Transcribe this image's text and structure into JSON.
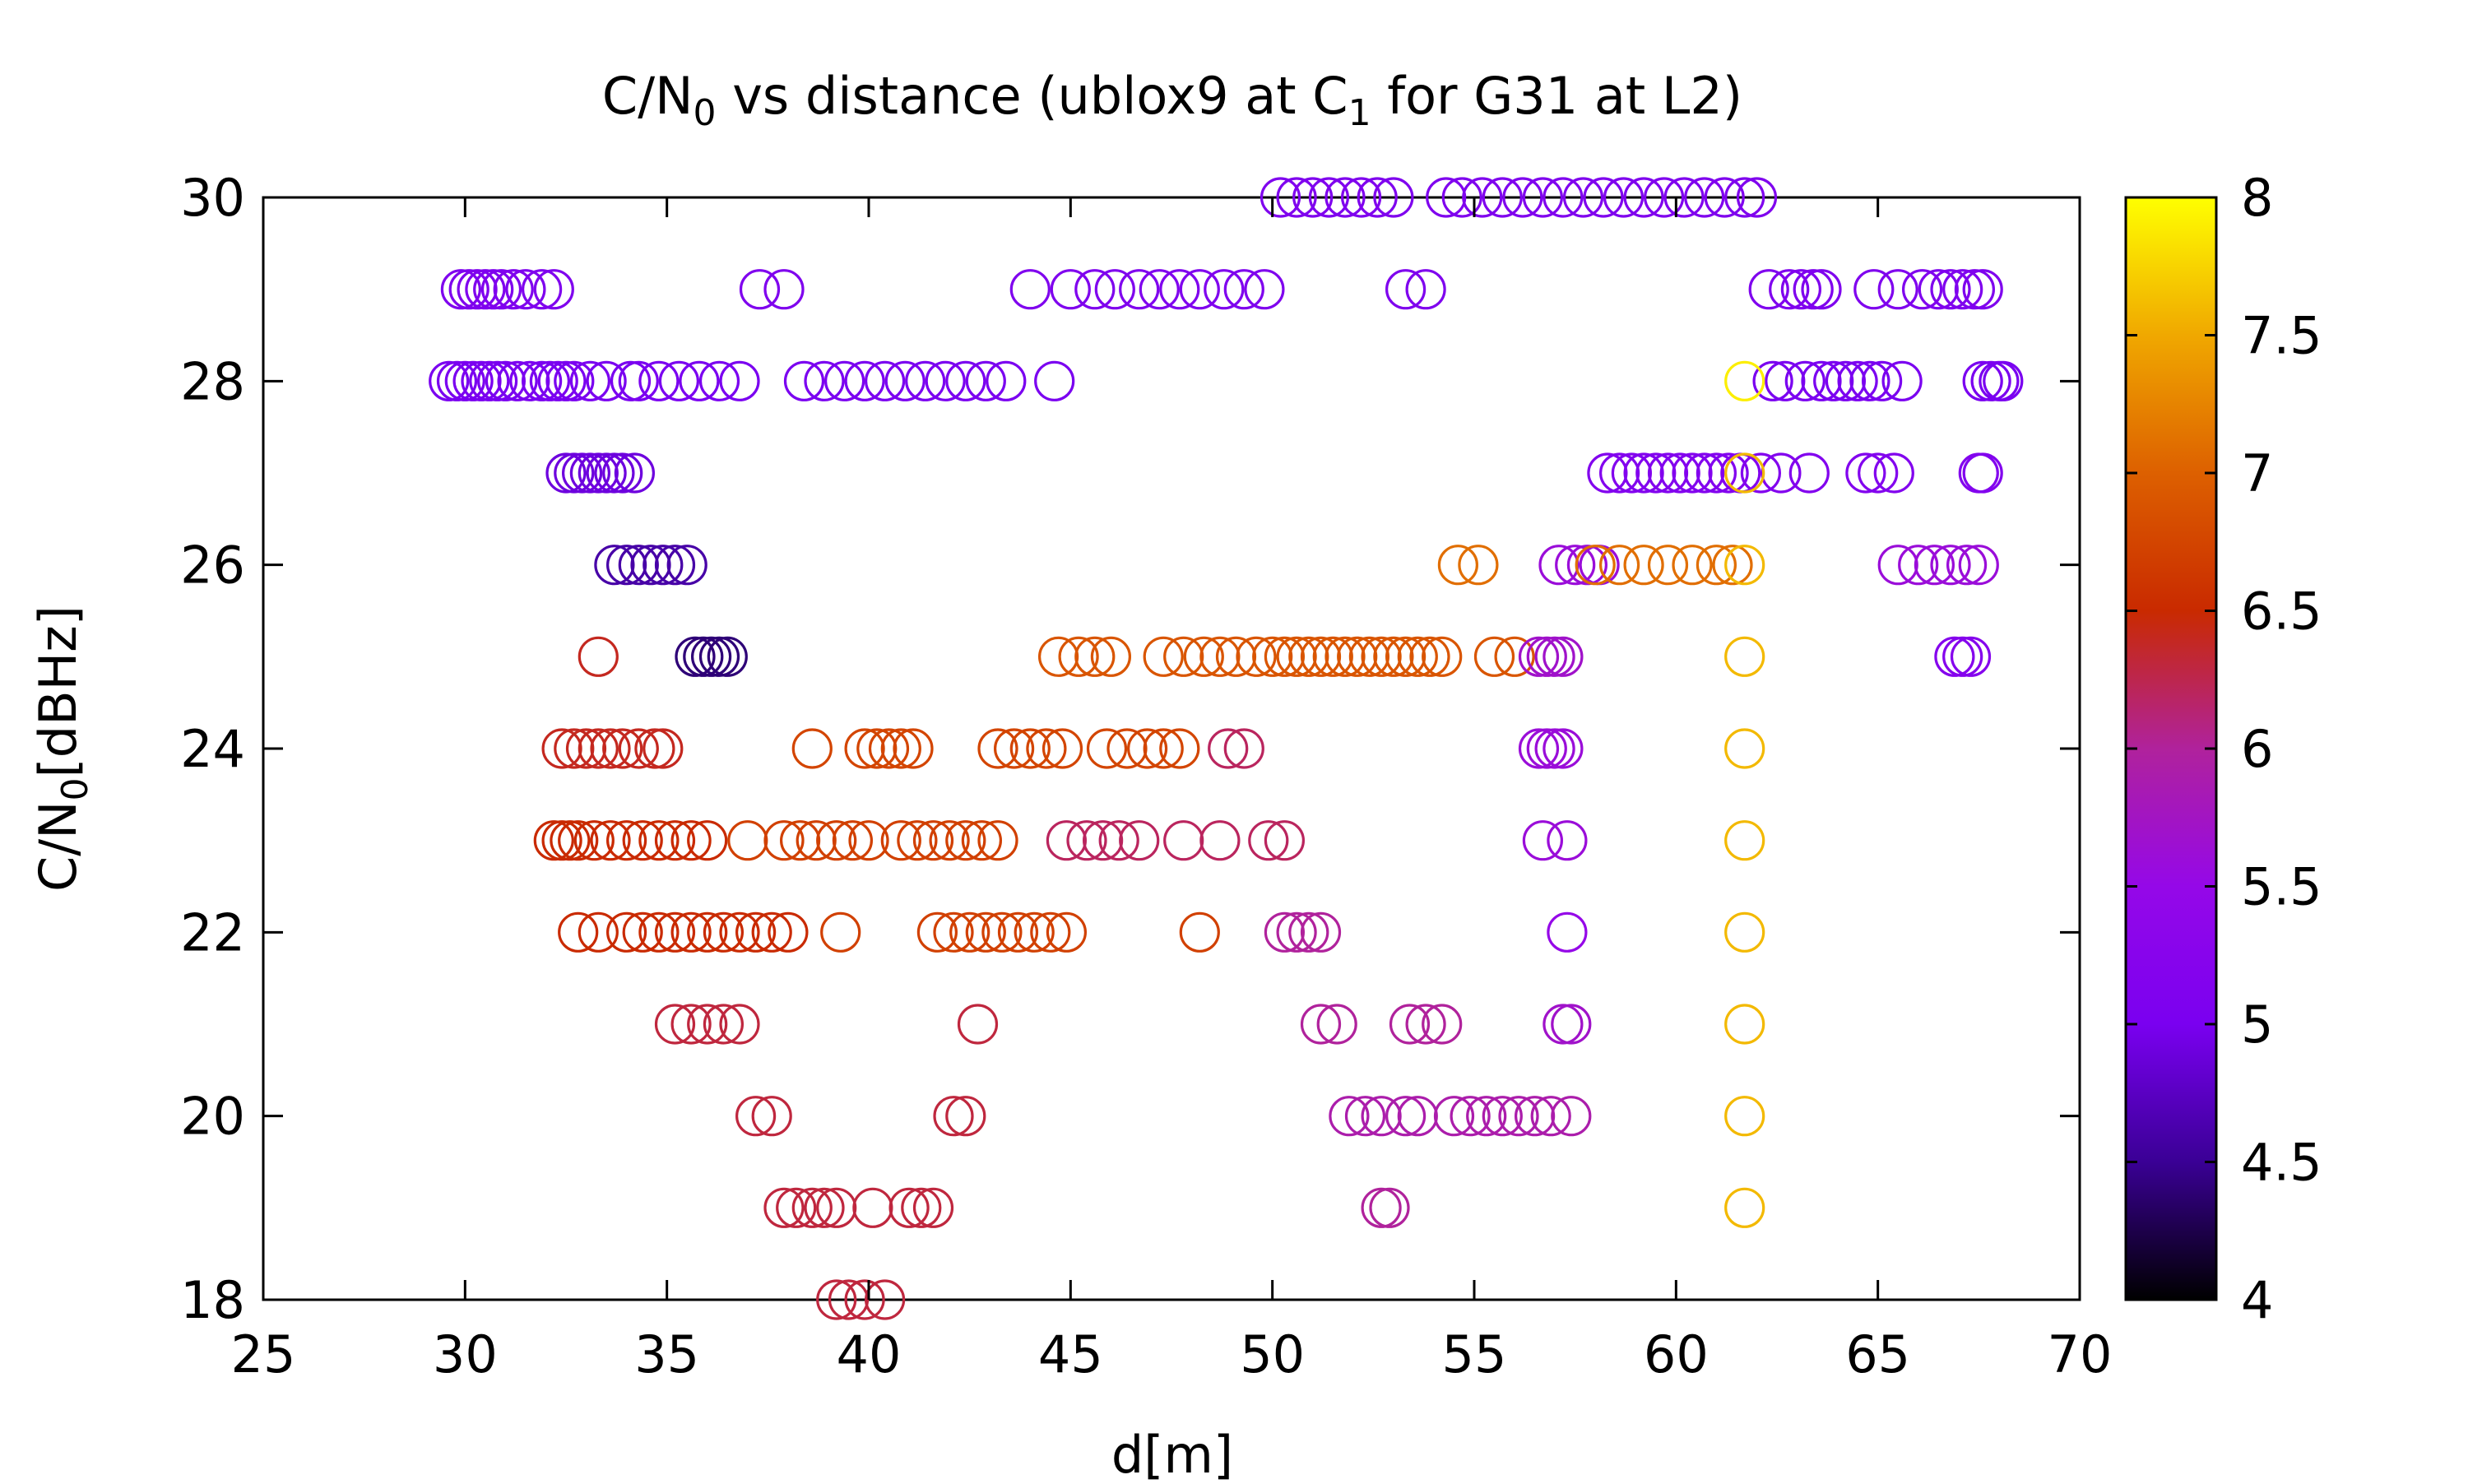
{
  "chart_data": {
    "type": "scatter",
    "title_parts": {
      "a": "C/N",
      "a_sub": "0",
      "b": " vs distance (ublox9 at C",
      "b_sub": "1",
      "c": " for G31 at L2)"
    },
    "xlabel": "d[m]",
    "ylabel_parts": {
      "a": "C/N",
      "a_sub": "0",
      "b": "[dBHz]"
    },
    "xlim": [
      25,
      70
    ],
    "ylim": [
      18,
      30
    ],
    "xticks": [
      25,
      30,
      35,
      40,
      45,
      50,
      55,
      60,
      65,
      70
    ],
    "yticks": [
      18,
      20,
      22,
      24,
      26,
      28,
      30
    ],
    "marker": "open-circle",
    "grid": false,
    "colorbar": {
      "range": [
        4,
        8
      ],
      "ticks": [
        "4",
        "4.5",
        "5",
        "5.5",
        "6",
        "6.5",
        "7",
        "7.5",
        "8"
      ],
      "palette": [
        "#000000",
        "#3a0095",
        "#7a00f0",
        "#9508e8",
        "#b0229c",
        "#c92a00",
        "#dd6000",
        "#f0a800",
        "#ffff00"
      ]
    },
    "points": [
      {
        "y": 30,
        "c": 5.1,
        "x": [
          50.2,
          50.6,
          51.0,
          51.4,
          51.8,
          52.2,
          52.6,
          53.0,
          54.3,
          54.7,
          55.2,
          55.7,
          56.2,
          56.7,
          57.2,
          57.7,
          58.2,
          58.7,
          59.2,
          59.7,
          60.2,
          60.7,
          61.2,
          61.7,
          62.0
        ]
      },
      {
        "y": 29,
        "c": 5.1,
        "x": [
          29.9,
          30.1,
          30.3,
          30.5,
          30.7,
          30.9,
          31.2,
          31.5,
          31.9,
          32.2,
          37.3,
          37.9,
          44.0,
          45.0,
          45.6,
          46.1,
          46.7,
          47.2,
          47.7,
          48.2,
          48.8,
          49.3,
          49.8,
          53.3,
          53.8,
          62.3,
          62.8,
          63.1,
          63.4,
          63.6,
          64.9,
          65.5,
          66.1,
          66.5,
          66.8,
          67.1,
          67.4,
          67.6
        ]
      },
      {
        "y": 28,
        "c": 5.0,
        "x": [
          29.6,
          29.8,
          30.0,
          30.2,
          30.4,
          30.6,
          30.8,
          31.0,
          31.3,
          31.6,
          31.9,
          32.1,
          32.3,
          32.5,
          32.7,
          33.1,
          33.5,
          34.1,
          34.3,
          34.8,
          35.3,
          35.8,
          36.3,
          36.8,
          38.4,
          38.9,
          39.4,
          39.9,
          40.4,
          40.9,
          41.4,
          41.9,
          42.4,
          42.9,
          43.4,
          44.6,
          62.4,
          62.7,
          63.2,
          63.6,
          63.9,
          64.2,
          64.5,
          64.8,
          65.1,
          65.6,
          67.6,
          67.8,
          68.0,
          68.1
        ]
      },
      {
        "y": 28,
        "c": 7.9,
        "x": [
          61.7
        ]
      },
      {
        "y": 27,
        "c": 4.9,
        "x": [
          32.5,
          32.7,
          32.9,
          33.1,
          33.3,
          33.5,
          33.7,
          33.9,
          34.2
        ]
      },
      {
        "y": 27,
        "c": 5.15,
        "x": [
          58.3,
          58.6,
          58.9,
          59.2,
          59.5,
          59.8,
          60.1,
          60.4,
          60.7,
          61.0,
          61.3,
          61.6,
          62.1,
          62.6,
          63.3,
          64.7,
          65.0,
          65.4,
          67.5,
          67.6
        ]
      },
      {
        "y": 27,
        "c": 7.6,
        "x": [
          61.7
        ]
      },
      {
        "y": 26,
        "c": 4.6,
        "x": [
          33.7,
          34.0,
          34.3,
          34.6,
          34.9,
          35.2,
          35.5
        ]
      },
      {
        "y": 26,
        "c": 5.6,
        "x": [
          57.1,
          57.5,
          57.8,
          58.1,
          65.5,
          66.0,
          66.4,
          66.8,
          67.2,
          67.5
        ]
      },
      {
        "y": 26,
        "c": 7.1,
        "x": [
          54.6,
          55.1,
          58.0,
          58.6,
          59.2,
          59.8,
          60.4,
          61.0,
          61.4
        ]
      },
      {
        "y": 26,
        "c": 7.6,
        "x": [
          61.7
        ]
      },
      {
        "y": 25,
        "c": 4.4,
        "x": [
          35.7,
          35.9,
          36.1,
          36.3,
          36.5
        ]
      },
      {
        "y": 25,
        "c": 6.4,
        "x": [
          33.3
        ]
      },
      {
        "y": 25,
        "c": 6.9,
        "x": [
          44.7,
          45.2,
          45.6,
          46.0,
          47.3,
          47.8,
          48.3,
          48.7,
          49.1,
          49.6,
          50.0,
          50.3,
          50.6,
          50.9,
          51.2,
          51.5,
          51.8,
          52.1,
          52.4,
          52.7,
          53.0,
          53.3,
          53.6,
          53.9,
          54.2,
          55.5,
          56.0
        ]
      },
      {
        "y": 25,
        "c": 5.7,
        "x": [
          56.6,
          56.8,
          57.0,
          57.2
        ]
      },
      {
        "y": 25,
        "c": 5.2,
        "x": [
          66.9,
          67.1,
          67.3
        ]
      },
      {
        "y": 25,
        "c": 7.6,
        "x": [
          61.7
        ]
      },
      {
        "y": 24,
        "c": 6.4,
        "x": [
          32.4,
          32.7,
          33.0,
          33.3,
          33.6,
          33.9,
          34.3,
          34.7,
          34.9
        ]
      },
      {
        "y": 24,
        "c": 6.75,
        "x": [
          38.6,
          39.9,
          40.2,
          40.5,
          40.8,
          41.1,
          43.2,
          43.6,
          44.0,
          44.4,
          44.8,
          45.9,
          46.4,
          46.9,
          47.3,
          47.7
        ]
      },
      {
        "y": 24,
        "c": 6.2,
        "x": [
          48.9,
          49.3
        ]
      },
      {
        "y": 24,
        "c": 5.6,
        "x": [
          56.6,
          56.8,
          57.0,
          57.2
        ]
      },
      {
        "y": 24,
        "c": 7.6,
        "x": [
          61.7
        ]
      },
      {
        "y": 23,
        "c": 6.5,
        "x": [
          32.2,
          32.4,
          32.6,
          32.8,
          33.2,
          33.6,
          34.0,
          34.4,
          34.8,
          35.2,
          35.6,
          36.0
        ]
      },
      {
        "y": 23,
        "c": 6.7,
        "x": [
          37.0,
          37.9,
          38.3,
          38.7,
          39.2,
          39.6,
          40.0,
          40.8,
          41.2,
          41.6,
          42.0,
          42.4,
          42.8,
          43.2
        ]
      },
      {
        "y": 23,
        "c": 6.2,
        "x": [
          44.9,
          45.4,
          45.8,
          46.2,
          46.7,
          47.8,
          48.7,
          49.9,
          50.3
        ]
      },
      {
        "y": 23,
        "c": 5.6,
        "x": [
          56.7,
          57.3
        ]
      },
      {
        "y": 23,
        "c": 7.6,
        "x": [
          61.7
        ]
      },
      {
        "y": 22,
        "c": 6.5,
        "x": [
          32.8,
          33.3,
          34.0,
          34.4,
          34.8,
          35.2,
          35.6,
          36.0,
          36.4,
          36.8,
          37.2,
          37.6,
          38.0
        ]
      },
      {
        "y": 22,
        "c": 6.7,
        "x": [
          39.3,
          41.7,
          42.1,
          42.5,
          42.9,
          43.3,
          43.7,
          44.1,
          44.5,
          44.9,
          48.2
        ]
      },
      {
        "y": 22,
        "c": 6.0,
        "x": [
          50.3,
          50.6,
          50.9,
          51.2
        ]
      },
      {
        "y": 22,
        "c": 5.5,
        "x": [
          57.3
        ]
      },
      {
        "y": 22,
        "c": 7.6,
        "x": [
          61.7
        ]
      },
      {
        "y": 21,
        "c": 6.3,
        "x": [
          35.2,
          35.6,
          36.0,
          36.4,
          36.8,
          42.7
        ]
      },
      {
        "y": 21,
        "c": 6.0,
        "x": [
          51.2,
          51.6,
          53.4,
          53.8,
          54.2
        ]
      },
      {
        "y": 21,
        "c": 5.7,
        "x": [
          57.2,
          57.4
        ]
      },
      {
        "y": 21,
        "c": 7.6,
        "x": [
          61.7
        ]
      },
      {
        "y": 20,
        "c": 6.3,
        "x": [
          37.2,
          37.6,
          42.1,
          42.4
        ]
      },
      {
        "y": 20,
        "c": 5.9,
        "x": [
          51.9,
          52.3,
          52.7,
          53.3,
          53.6,
          54.5,
          54.9,
          55.3,
          55.7,
          56.1,
          56.5,
          56.9,
          57.4
        ]
      },
      {
        "y": 20,
        "c": 7.6,
        "x": [
          61.7
        ]
      },
      {
        "y": 19,
        "c": 6.3,
        "x": [
          37.9,
          38.2,
          38.6,
          38.9,
          39.2,
          40.1,
          41.0,
          41.3,
          41.6
        ]
      },
      {
        "y": 19,
        "c": 6.0,
        "x": [
          52.7,
          52.9
        ]
      },
      {
        "y": 19,
        "c": 7.6,
        "x": [
          61.7
        ]
      },
      {
        "y": 18,
        "c": 6.3,
        "x": [
          39.2,
          39.5,
          39.9,
          40.4
        ]
      }
    ]
  }
}
